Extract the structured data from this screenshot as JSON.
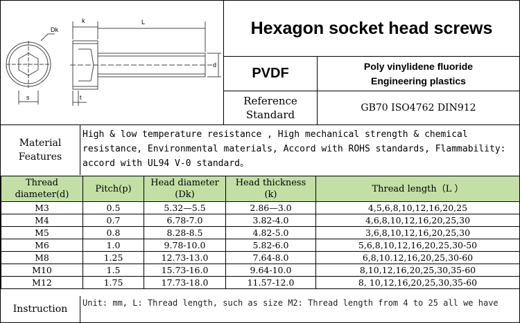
{
  "title": "Hexagon socket head screws",
  "diagram": {
    "labels": {
      "dk": "Dk",
      "k": "k",
      "l": "L",
      "d": "d",
      "s": "s",
      "t": "t"
    }
  },
  "material": {
    "code": "PVDF",
    "name_line1": "Poly vinylidene fluoride",
    "name_line2": "Engineering plastics"
  },
  "reference": {
    "label_line1": "Reference",
    "label_line2": "Standard",
    "value": "GB70 ISO4762 DIN912"
  },
  "features": {
    "label_line1": "Material",
    "label_line2": "Features",
    "text": "High & low temperature resistance , High mechanical strength & chemical resistance, Environmental materials, Accord with ROHS standards, Flammability: accord with UL94 V-0 standard。"
  },
  "table": {
    "headers": {
      "thread_diameter": "Thread diameter(d)",
      "pitch": "Pitch(p)",
      "head_diameter_l1": "Head diameter",
      "head_diameter_l2": "(Dk)",
      "head_thickness_l1": "Head thickness",
      "head_thickness_l2": "(k)",
      "thread_length": "Thread length（L ）"
    },
    "rows": [
      {
        "size": "M3",
        "pitch": "0.5",
        "head_diameter": "5.32—5.5",
        "head_thickness": "2.86—3.0",
        "lengths": "4,5,6,8,10,12,16,20,25"
      },
      {
        "size": "M4",
        "pitch": "0.7",
        "head_diameter": "6.78-7.0",
        "head_thickness": "3.82-4.0",
        "lengths": "4,6,8,10,12,16,20,25,30"
      },
      {
        "size": "M5",
        "pitch": "0.8",
        "head_diameter": "8.28-8.5",
        "head_thickness": "4.82-5.0",
        "lengths": "3,6,8,10,12,16,20,25,30"
      },
      {
        "size": "M6",
        "pitch": "1.0",
        "head_diameter": "9.78-10.0",
        "head_thickness": "5.82-6.0",
        "lengths": "5,6,8,10,12,16,20,25,30-50"
      },
      {
        "size": "M8",
        "pitch": "1.25",
        "head_diameter": "12.73-13.0",
        "head_thickness": "7.64-8.0",
        "lengths": "6,8,10.12,16,20,25,30-60"
      },
      {
        "size": "M10",
        "pitch": "1.5",
        "head_diameter": "15.73-16.0",
        "head_thickness": "9.64-10.0",
        "lengths": "8,10,12,16,20,25,30,35-60"
      },
      {
        "size": "M12",
        "pitch": "1.75",
        "head_diameter": "17.73-18.0",
        "head_thickness": "11.57-12.0",
        "lengths": "8, 10,12,16,20,25,30,35-60"
      }
    ]
  },
  "instruction": {
    "label": "Instruction",
    "text": "Unit: mm, L: Thread length, such as size M2: Thread length from 4 to 25 all we have"
  },
  "colors": {
    "header_bg": "#c3dfa5"
  }
}
